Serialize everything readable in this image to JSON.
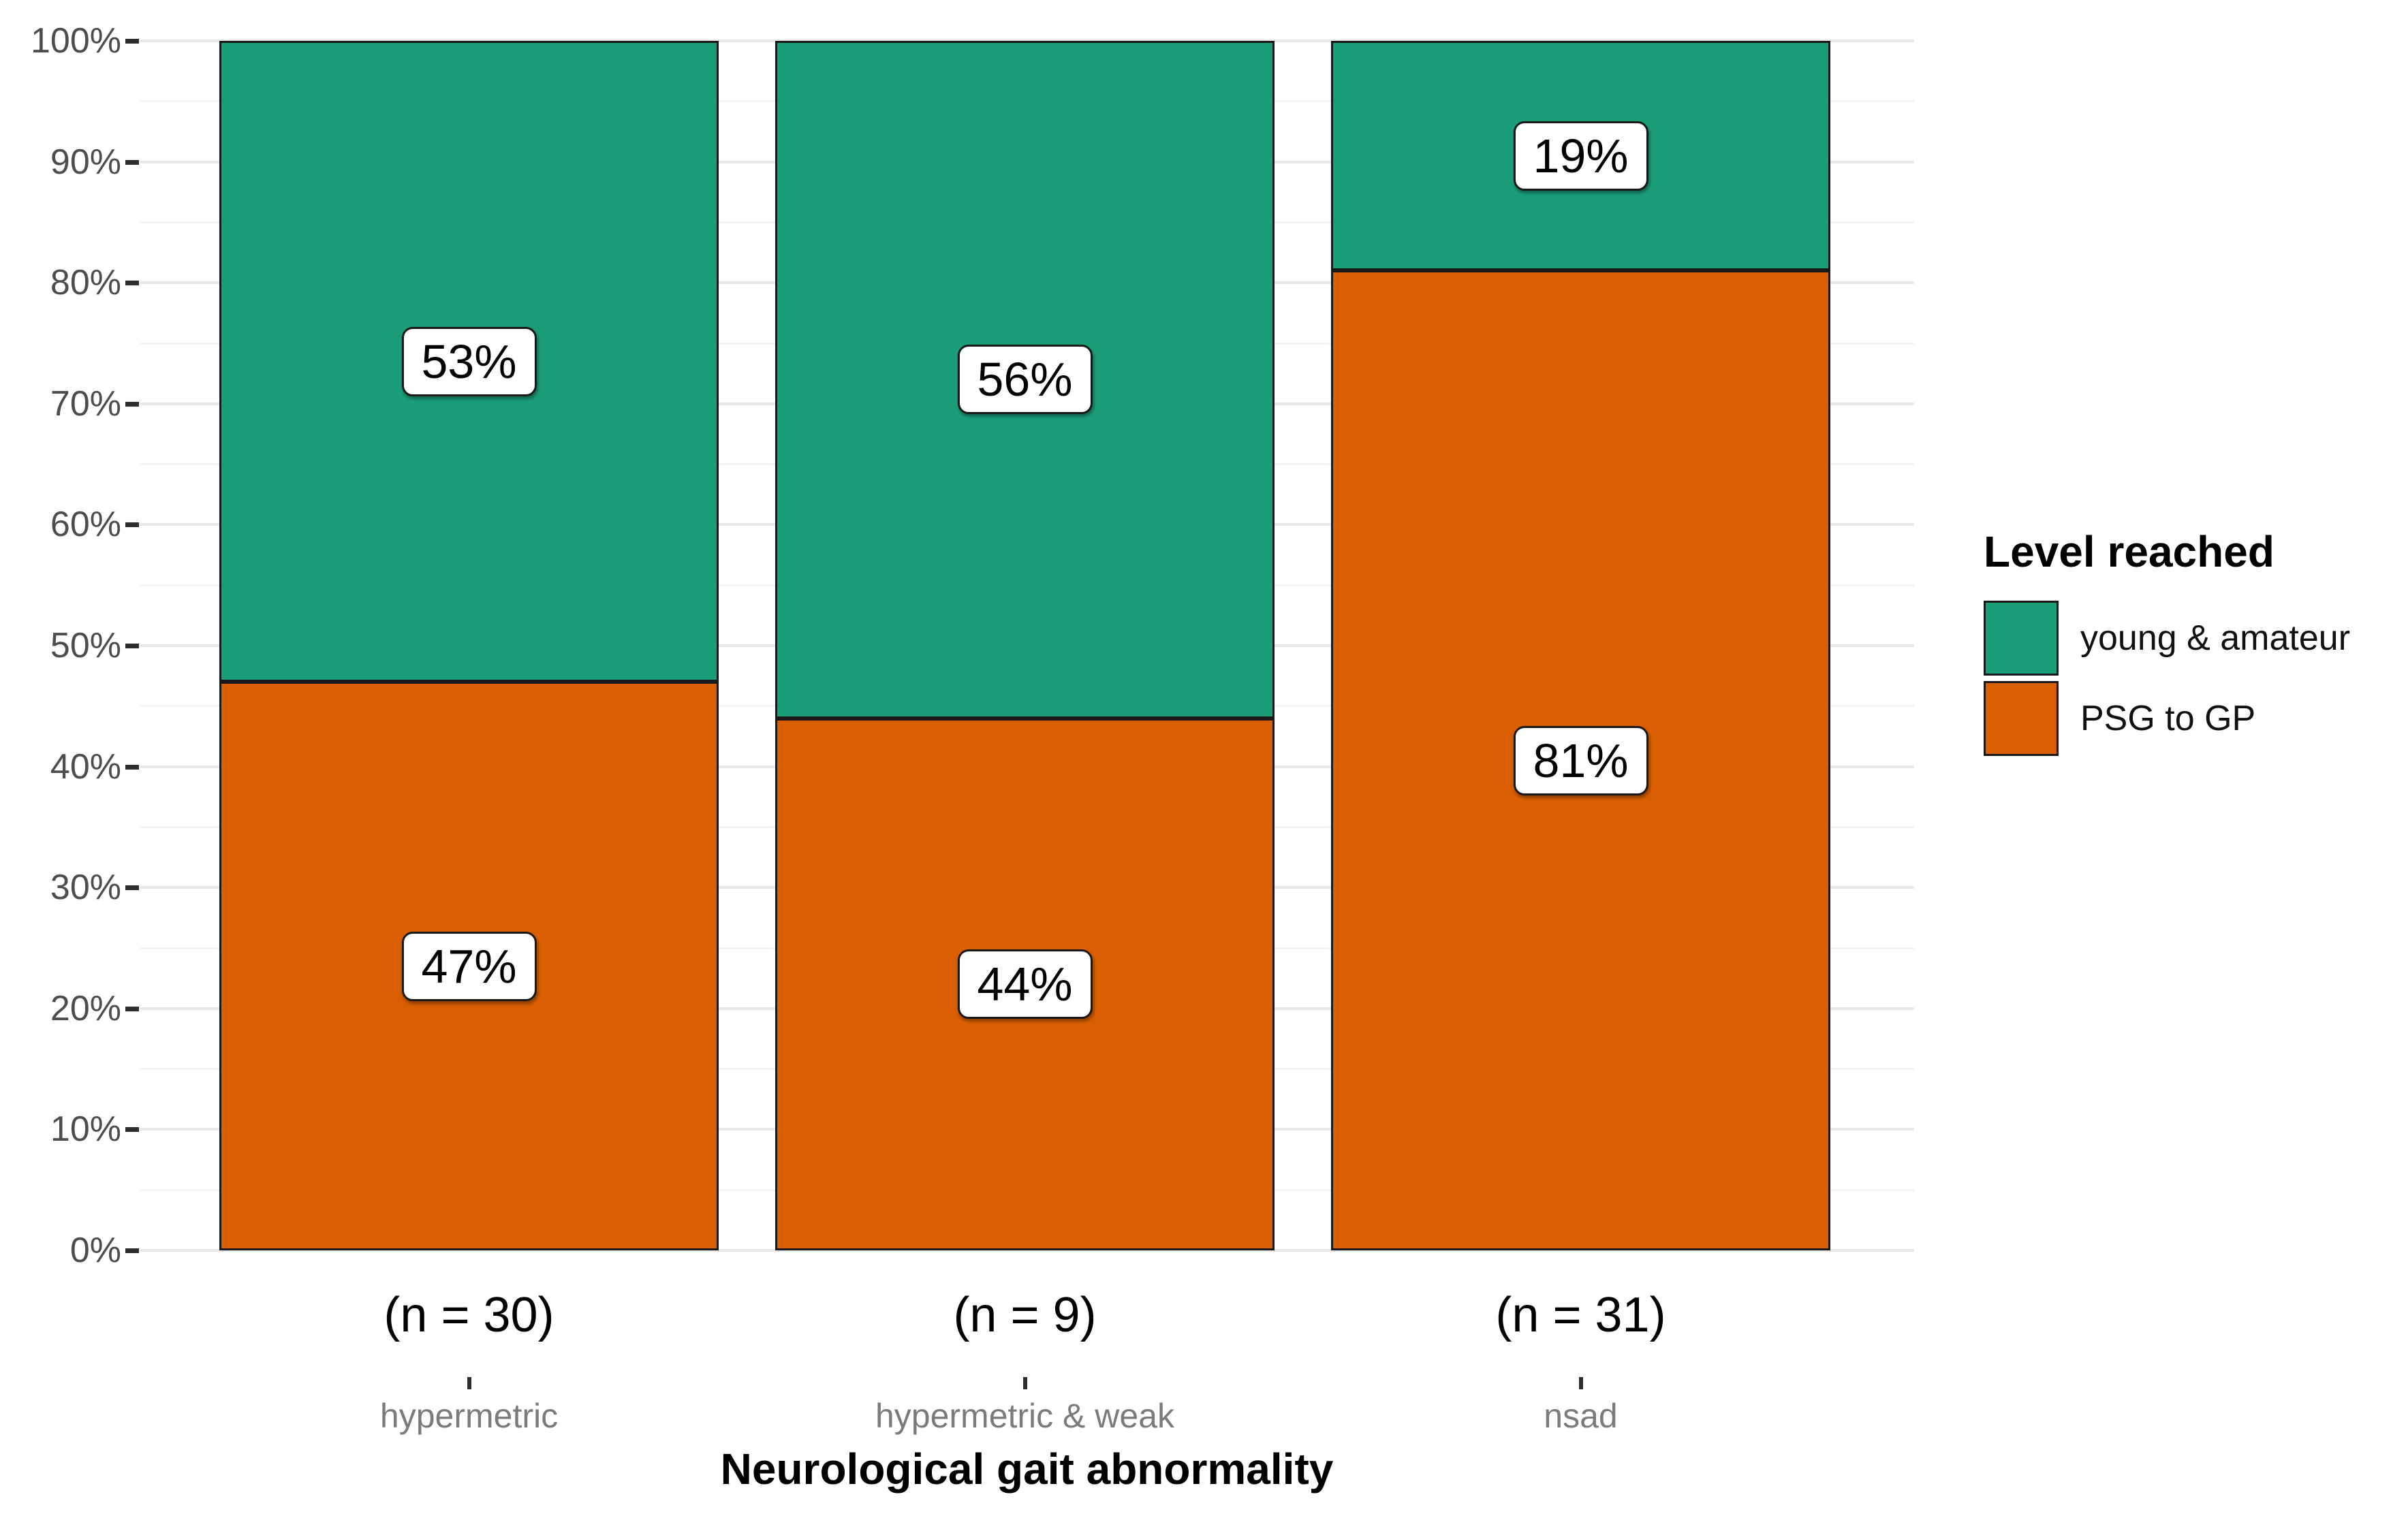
{
  "chart_data": {
    "type": "bar",
    "stacked": true,
    "orientation": "vertical",
    "title": "",
    "xlabel": "Neurological gait abnormality",
    "ylabel": "",
    "categories": [
      "hypermetric",
      "hypermetric & weak",
      "nsad"
    ],
    "category_n_labels": [
      "(n = 30)",
      "(n = 9)",
      "(n = 31)"
    ],
    "series": [
      {
        "name": "young & amateur",
        "color": "#1b9e77",
        "values": [
          53,
          56,
          19
        ],
        "labels": [
          "53%",
          "56%",
          "19%"
        ]
      },
      {
        "name": "PSG to GP",
        "color": "#d95f02",
        "values": [
          47,
          44,
          81
        ],
        "labels": [
          "47%",
          "44%",
          "81%"
        ]
      }
    ],
    "stack_order_bottom_to_top": [
      "PSG to GP",
      "young & amateur"
    ],
    "ylim": [
      0,
      100
    ],
    "y_major_ticks": [
      0,
      10,
      20,
      30,
      40,
      50,
      60,
      70,
      80,
      90,
      100
    ],
    "y_minor_ticks": [
      5,
      15,
      25,
      35,
      45,
      55,
      65,
      75,
      85,
      95
    ],
    "y_tick_labels": [
      "0%",
      "10%",
      "20%",
      "30%",
      "40%",
      "50%",
      "60%",
      "70%",
      "80%",
      "90%",
      "100%"
    ],
    "grid": {
      "major": true,
      "minor": true
    },
    "legend": {
      "title": "Level reached",
      "position": "right",
      "entries": [
        "young & amateur",
        "PSG to GP"
      ]
    }
  }
}
